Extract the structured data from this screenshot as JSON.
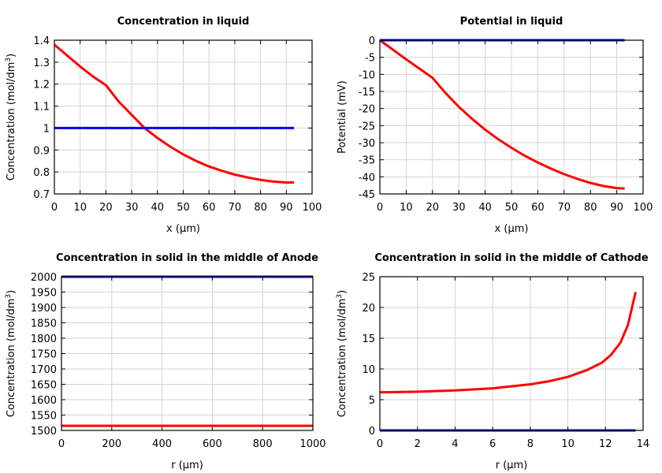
{
  "chart_data": [
    {
      "type": "line",
      "title": "Concentration in liquid",
      "xlabel": "x (µm)",
      "ylabel": "Concentration (mol/dm",
      "ylabel_sup": "3",
      "ylabel_end": ")",
      "xlim": [
        0,
        100
      ],
      "ylim": [
        0.7,
        1.4
      ],
      "xticks": [
        0,
        10,
        20,
        30,
        40,
        50,
        60,
        70,
        80,
        90,
        100
      ],
      "yticks": [
        0.7,
        0.8,
        0.9,
        1,
        1.1,
        1.2,
        1.3,
        1.4
      ],
      "xtick_labels": [
        "0",
        "10",
        "20",
        "30",
        "40",
        "50",
        "60",
        "70",
        "80",
        "90",
        "100"
      ],
      "ytick_labels": [
        "0.7",
        "0.8",
        "0.9",
        "1",
        "1.1",
        "1.2",
        "1.3",
        "1.4"
      ],
      "grid": true,
      "series": [
        {
          "color": "#ff0000",
          "x": [
            0,
            5,
            10,
            15,
            20,
            25,
            30,
            35,
            40,
            45,
            50,
            55,
            60,
            65,
            70,
            75,
            80,
            85,
            90,
            93
          ],
          "y": [
            1.38,
            1.33,
            1.28,
            1.235,
            1.195,
            1.12,
            1.06,
            1.0,
            0.955,
            0.915,
            0.88,
            0.85,
            0.825,
            0.805,
            0.788,
            0.775,
            0.764,
            0.756,
            0.752,
            0.752
          ]
        },
        {
          "color": "#0000ff",
          "x": [
            0,
            93
          ],
          "y": [
            1,
            1
          ]
        }
      ]
    },
    {
      "type": "line",
      "title": "Potential in liquid",
      "xlabel": "x (µm)",
      "ylabel": "Potential (mV)",
      "ylabel_sup": "",
      "ylabel_end": "",
      "xlim": [
        0,
        100
      ],
      "ylim": [
        -45,
        0
      ],
      "xticks": [
        0,
        10,
        20,
        30,
        40,
        50,
        60,
        70,
        80,
        90,
        100
      ],
      "yticks": [
        -45,
        -40,
        -35,
        -30,
        -25,
        -20,
        -15,
        -10,
        -5,
        0
      ],
      "xtick_labels": [
        "0",
        "10",
        "20",
        "30",
        "40",
        "50",
        "60",
        "70",
        "80",
        "90",
        "100"
      ],
      "ytick_labels": [
        "-45",
        "-40",
        "-35",
        "-30",
        "-25",
        "-20",
        "-15",
        "-10",
        "-5",
        "0"
      ],
      "grid": true,
      "series": [
        {
          "color": "#ff0000",
          "x": [
            0,
            5,
            10,
            15,
            20,
            25,
            30,
            35,
            40,
            45,
            50,
            55,
            60,
            65,
            70,
            75,
            80,
            85,
            90,
            93
          ],
          "y": [
            0,
            -2.8,
            -5.6,
            -8.3,
            -11,
            -15.5,
            -19.5,
            -23,
            -26.2,
            -29,
            -31.5,
            -33.8,
            -35.8,
            -37.6,
            -39.2,
            -40.6,
            -41.8,
            -42.7,
            -43.3,
            -43.4
          ]
        },
        {
          "color": "#0000ff",
          "x": [
            0,
            93
          ],
          "y": [
            0,
            0
          ]
        }
      ]
    },
    {
      "type": "line",
      "title": "Concentration in solid in the middle of Anode",
      "xlabel": "r (µm)",
      "ylabel": "Concentration (mol/dm",
      "ylabel_sup": "3",
      "ylabel_end": ")",
      "xlim": [
        0,
        1000
      ],
      "ylim": [
        1500,
        2000
      ],
      "xticks": [
        0,
        200,
        400,
        600,
        800,
        1000
      ],
      "yticks": [
        1500,
        1550,
        1600,
        1650,
        1700,
        1750,
        1800,
        1850,
        1900,
        1950,
        2000
      ],
      "xtick_labels": [
        "0",
        "200",
        "400",
        "600",
        "800",
        "1000"
      ],
      "ytick_labels": [
        "1500",
        "1550",
        "1600",
        "1650",
        "1700",
        "1750",
        "1800",
        "1850",
        "1900",
        "1950",
        "2000"
      ],
      "grid": true,
      "series": [
        {
          "color": "#ff0000",
          "x": [
            0,
            1000
          ],
          "y": [
            1515,
            1515
          ]
        },
        {
          "color": "#0000ff",
          "x": [
            0,
            1000
          ],
          "y": [
            2000,
            2000
          ]
        }
      ]
    },
    {
      "type": "line",
      "title": "Concentration in solid in the middle of Cathode",
      "xlabel": "r (µm)",
      "ylabel": "Concentration (mol/dm",
      "ylabel_sup": "3",
      "ylabel_end": ")",
      "xlim": [
        0,
        14
      ],
      "ylim": [
        0,
        25
      ],
      "xticks": [
        0,
        2,
        4,
        6,
        8,
        10,
        12,
        14
      ],
      "yticks": [
        0,
        5,
        10,
        15,
        20,
        25
      ],
      "xtick_labels": [
        "0",
        "2",
        "4",
        "6",
        "8",
        "10",
        "12",
        "14"
      ],
      "ytick_labels": [
        "0",
        "5",
        "10",
        "15",
        "20",
        "25"
      ],
      "grid": true,
      "series": [
        {
          "color": "#ff0000",
          "x": [
            0,
            2,
            4,
            6,
            8,
            9,
            10,
            11,
            11.8,
            12.3,
            12.8,
            13.2,
            13.6
          ],
          "y": [
            6.2,
            6.3,
            6.5,
            6.85,
            7.5,
            8,
            8.7,
            9.8,
            11,
            12.3,
            14.3,
            17.2,
            22.5
          ]
        },
        {
          "color": "#0000ff",
          "x": [
            0,
            13.6
          ],
          "y": [
            0,
            0
          ]
        }
      ]
    }
  ]
}
